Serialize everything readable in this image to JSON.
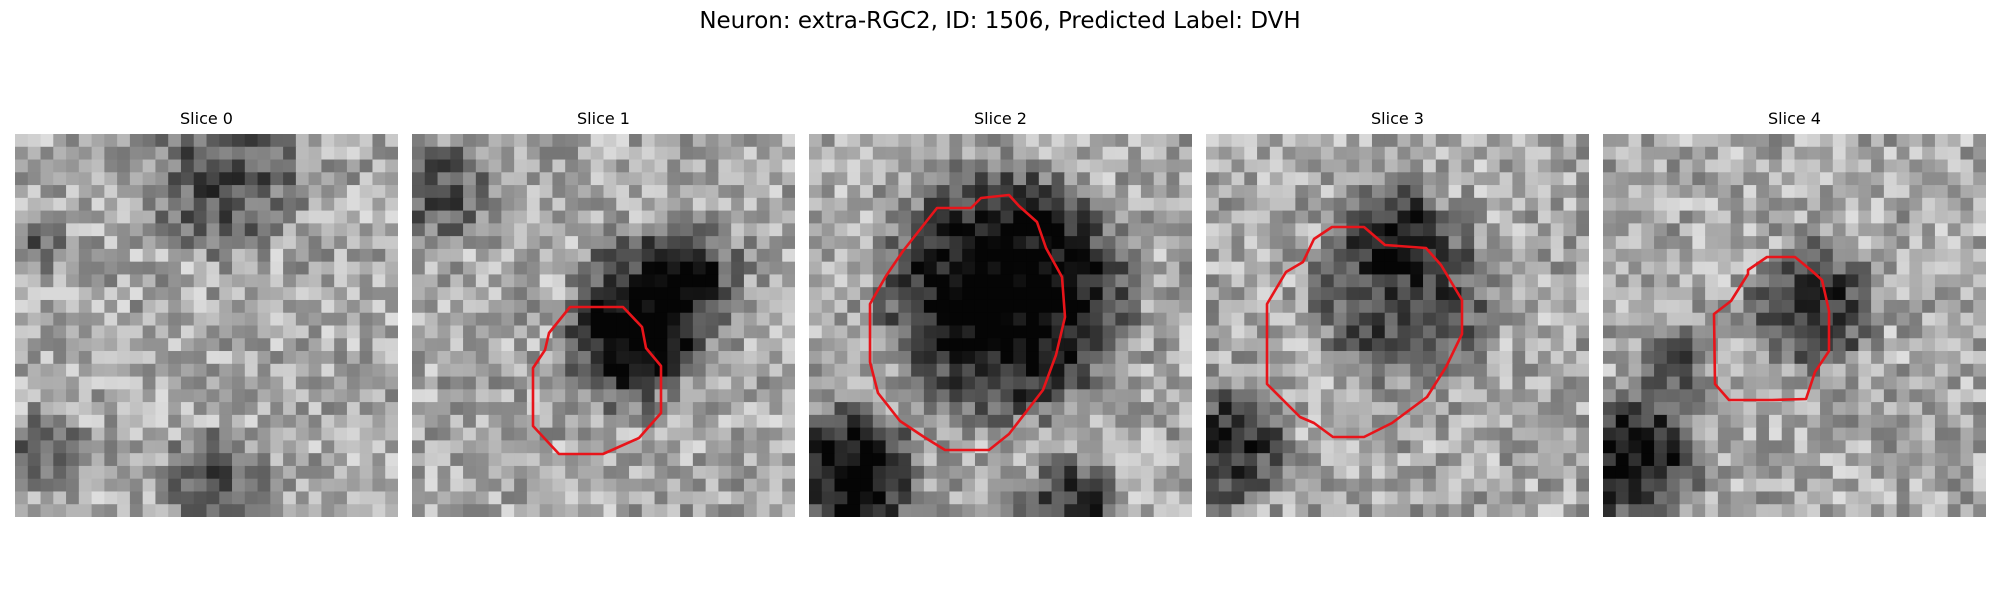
{
  "figure": {
    "suptitle": "Neuron: extra-RGC2, ID: 1506, Predicted Label: DVH",
    "contour_color": "#e8141a",
    "colormap": "grayscale",
    "panels": [
      {
        "title": "Slice 0",
        "has_contour": false
      },
      {
        "title": "Slice 1",
        "has_contour": true
      },
      {
        "title": "Slice 2",
        "has_contour": true
      },
      {
        "title": "Slice 3",
        "has_contour": true
      },
      {
        "title": "Slice 4",
        "has_contour": true
      }
    ]
  }
}
